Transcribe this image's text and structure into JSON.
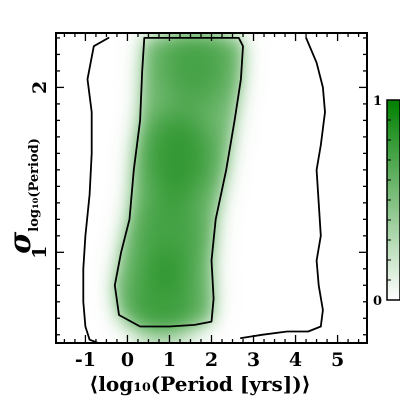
{
  "chart_data": {
    "type": "heatmap",
    "xlabel": "⟨log₁₀(Period [yrs])⟩",
    "ylabel_main": "σ",
    "ylabel_sub": "log₁₀(Period)",
    "xlim": [
      -1.7,
      5.7
    ],
    "ylim": [
      0.45,
      2.33
    ],
    "x_ticks": [
      -1,
      0,
      1,
      2,
      3,
      4,
      5
    ],
    "x_tick_labels": [
      "-1",
      "0",
      "1",
      "2",
      "3",
      "4",
      "5"
    ],
    "y_ticks": [
      1,
      2
    ],
    "y_tick_labels": [
      "1",
      "2"
    ],
    "colorbar": {
      "min": 0,
      "max": 1,
      "tick_labels": [
        "0",
        "1"
      ],
      "color_low": "#ffffff",
      "color_high": "#008000"
    },
    "density_color": "#008000",
    "contour_color": "#000000",
    "density_peaks": [
      {
        "x": 1.2,
        "y": 1.58,
        "weight": 1.0
      },
      {
        "x": 0.85,
        "y": 0.7,
        "weight": 0.85
      },
      {
        "x": 1.6,
        "y": 2.15,
        "weight": 0.7
      },
      {
        "x": 1.0,
        "y": 1.1,
        "weight": 0.75
      }
    ],
    "contours": [
      {
        "level": "inner",
        "points": [
          [
            0.4,
            2.3
          ],
          [
            0.35,
            2.1
          ],
          [
            0.3,
            1.8
          ],
          [
            0.15,
            1.5
          ],
          [
            0.05,
            1.2
          ],
          [
            -0.15,
            1.0
          ],
          [
            -0.3,
            0.8
          ],
          [
            -0.2,
            0.62
          ],
          [
            0.3,
            0.55
          ],
          [
            1.0,
            0.55
          ],
          [
            1.6,
            0.56
          ],
          [
            2.0,
            0.58
          ],
          [
            2.05,
            0.72
          ],
          [
            2.0,
            0.95
          ],
          [
            2.1,
            1.2
          ],
          [
            2.35,
            1.5
          ],
          [
            2.55,
            1.8
          ],
          [
            2.7,
            2.05
          ],
          [
            2.75,
            2.25
          ],
          [
            2.65,
            2.3
          ],
          [
            2.5,
            2.3
          ],
          [
            2.4,
            2.3
          ],
          [
            2.1,
            2.3
          ],
          [
            1.3,
            2.3
          ],
          [
            0.8,
            2.3
          ],
          [
            0.4,
            2.3
          ]
        ]
      },
      {
        "level": "outer-left",
        "points": [
          [
            -0.45,
            2.3
          ],
          [
            -0.8,
            2.25
          ],
          [
            -0.95,
            2.05
          ],
          [
            -0.85,
            1.85
          ],
          [
            -0.85,
            1.6
          ],
          [
            -0.9,
            1.35
          ],
          [
            -1.0,
            1.1
          ],
          [
            -1.05,
            0.9
          ],
          [
            -1.05,
            0.7
          ],
          [
            -1.0,
            0.55
          ],
          [
            -0.9,
            0.47
          ],
          [
            -0.7,
            0.45
          ]
        ]
      },
      {
        "level": "outer-right",
        "points": [
          [
            4.25,
            2.3
          ],
          [
            4.5,
            2.15
          ],
          [
            4.65,
            2.0
          ],
          [
            4.7,
            1.85
          ],
          [
            4.6,
            1.65
          ],
          [
            4.5,
            1.5
          ],
          [
            4.55,
            1.3
          ],
          [
            4.6,
            1.1
          ],
          [
            4.5,
            0.95
          ],
          [
            4.55,
            0.8
          ],
          [
            4.65,
            0.65
          ],
          [
            4.6,
            0.55
          ],
          [
            4.3,
            0.52
          ],
          [
            3.8,
            0.52
          ],
          [
            3.2,
            0.5
          ],
          [
            2.7,
            0.48
          ]
        ]
      }
    ]
  }
}
